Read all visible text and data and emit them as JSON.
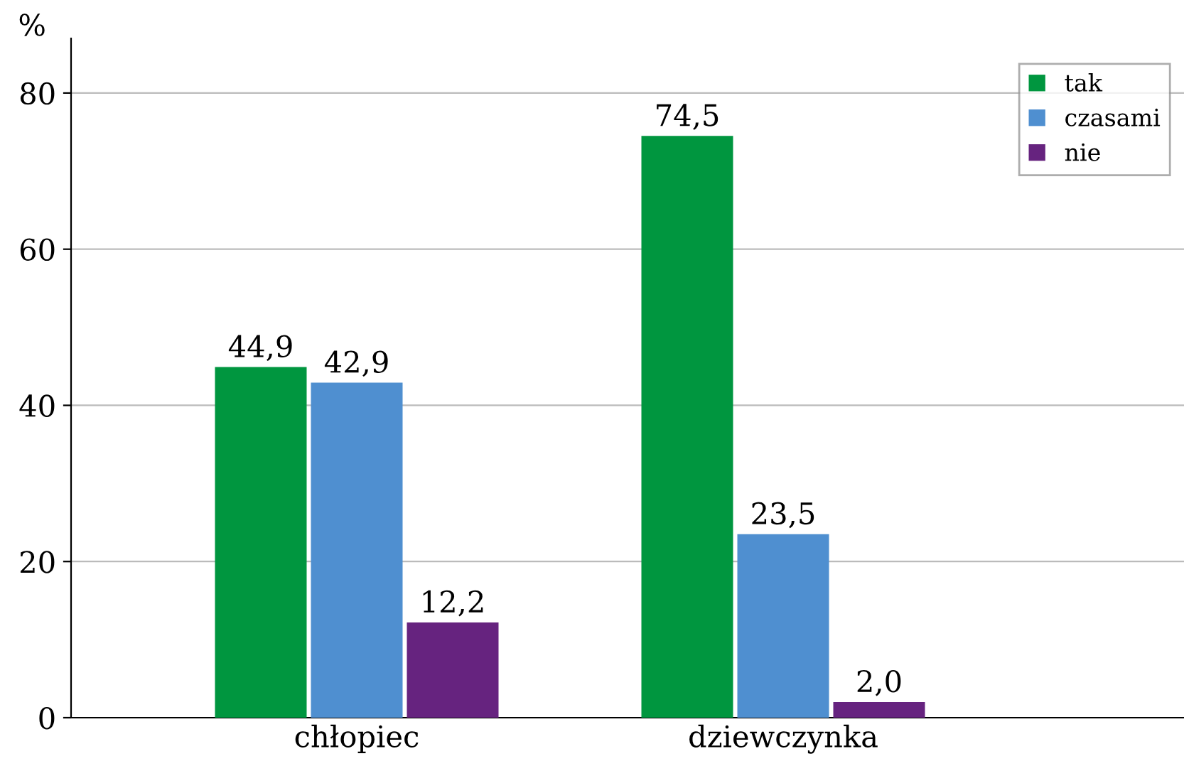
{
  "chart_data": {
    "type": "bar",
    "ylabel": "%",
    "categories": [
      "chłopiec",
      "dziewczynka"
    ],
    "series": [
      {
        "name": "tak",
        "color": "#00963f",
        "values": [
          44.9,
          74.5
        ],
        "value_labels": [
          "44,9",
          "74,5"
        ]
      },
      {
        "name": "czasami",
        "color": "#4f8fd0",
        "values": [
          42.9,
          23.5
        ],
        "value_labels": [
          "42,9",
          "23,5"
        ]
      },
      {
        "name": "nie",
        "color": "#66237f",
        "values": [
          12.2,
          2.0
        ],
        "value_labels": [
          "12,2",
          "2,0"
        ]
      }
    ],
    "ylim": [
      0,
      87
    ],
    "yticks": [
      0,
      20,
      40,
      60,
      80
    ],
    "grid": "y",
    "legend": "top right"
  }
}
